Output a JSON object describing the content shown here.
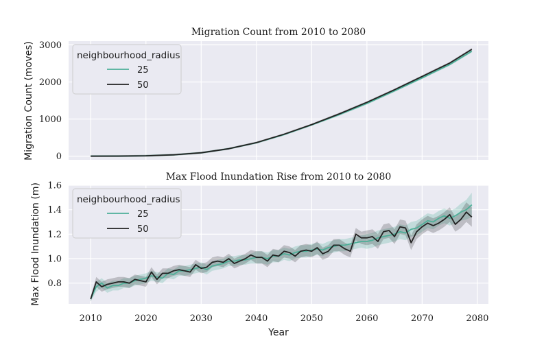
{
  "chart_data": [
    {
      "type": "line",
      "title": "Migration Count from 2010 to 2080",
      "xlabel": "",
      "ylabel": "Migration Count (moves)",
      "xlim": [
        2006,
        2082
      ],
      "ylim": [
        -100,
        3100
      ],
      "xticks": [
        "2010",
        "2020",
        "2030",
        "2040",
        "2050",
        "2060",
        "2070",
        "2080"
      ],
      "yticks": [
        "0",
        "1000",
        "2000",
        "3000"
      ],
      "grid": true,
      "legend": {
        "title": "neighbourhood_radius",
        "placement": "upper-left"
      },
      "x": [
        2010,
        2015,
        2020,
        2025,
        2030,
        2035,
        2040,
        2045,
        2050,
        2055,
        2060,
        2065,
        2070,
        2075,
        2079
      ],
      "series": [
        {
          "name": "25",
          "color": "#4daf98",
          "values": [
            0,
            1,
            10,
            35,
            90,
            200,
            360,
            580,
            840,
            1120,
            1420,
            1760,
            2110,
            2470,
            2830
          ],
          "band": [
            25,
            25,
            25,
            25,
            25,
            25,
            25,
            25,
            25,
            30,
            30,
            30,
            30,
            30,
            35
          ]
        },
        {
          "name": "50",
          "color": "#222222",
          "values": [
            0,
            1,
            10,
            35,
            90,
            200,
            365,
            590,
            850,
            1140,
            1450,
            1790,
            2150,
            2510,
            2880
          ],
          "band": [
            25,
            25,
            25,
            25,
            25,
            25,
            25,
            25,
            25,
            30,
            30,
            30,
            30,
            30,
            35
          ]
        }
      ]
    },
    {
      "type": "line",
      "title": "Max Flood Inundation Rise from 2010 to 2080",
      "xlabel": "Year",
      "ylabel": "Max Flood Inundation (m)",
      "xlim": [
        2006,
        2082
      ],
      "ylim": [
        0.63,
        1.6
      ],
      "xticks": [
        "2010",
        "2020",
        "2030",
        "2040",
        "2050",
        "2060",
        "2070",
        "2080"
      ],
      "yticks": [
        "0.8",
        "1.0",
        "1.2",
        "1.4",
        "1.6"
      ],
      "grid": true,
      "legend": {
        "title": "neighbourhood_radius",
        "placement": "upper-left"
      },
      "x": [
        2010,
        2011,
        2012,
        2013,
        2014,
        2015,
        2016,
        2017,
        2018,
        2019,
        2020,
        2021,
        2022,
        2023,
        2024,
        2025,
        2026,
        2027,
        2028,
        2029,
        2030,
        2031,
        2032,
        2033,
        2034,
        2035,
        2036,
        2037,
        2038,
        2039,
        2040,
        2041,
        2042,
        2043,
        2044,
        2045,
        2046,
        2047,
        2048,
        2049,
        2050,
        2051,
        2052,
        2053,
        2054,
        2055,
        2056,
        2057,
        2058,
        2059,
        2060,
        2061,
        2062,
        2063,
        2064,
        2065,
        2066,
        2067,
        2068,
        2069,
        2070,
        2071,
        2072,
        2073,
        2074,
        2075,
        2076,
        2077,
        2078,
        2079
      ],
      "series": [
        {
          "name": "25",
          "color": "#4daf98",
          "values": [
            0.67,
            0.77,
            0.8,
            0.76,
            0.78,
            0.78,
            0.8,
            0.8,
            0.82,
            0.83,
            0.84,
            0.86,
            0.85,
            0.84,
            0.88,
            0.87,
            0.9,
            0.9,
            0.91,
            0.92,
            0.93,
            0.91,
            0.94,
            0.95,
            0.96,
            0.98,
            0.98,
            0.99,
            0.99,
            1.0,
            1.01,
            1.01,
            1.0,
            1.02,
            1.02,
            1.04,
            1.03,
            1.05,
            1.06,
            1.06,
            1.07,
            1.08,
            1.07,
            1.09,
            1.1,
            1.11,
            1.11,
            1.12,
            1.13,
            1.14,
            1.14,
            1.15,
            1.17,
            1.18,
            1.19,
            1.2,
            1.22,
            1.21,
            1.24,
            1.25,
            1.28,
            1.31,
            1.3,
            1.33,
            1.35,
            1.33,
            1.35,
            1.38,
            1.4,
            1.44
          ],
          "band": [
            0.02,
            0.04,
            0.04,
            0.04,
            0.04,
            0.04,
            0.04,
            0.04,
            0.04,
            0.04,
            0.04,
            0.04,
            0.04,
            0.04,
            0.04,
            0.04,
            0.04,
            0.04,
            0.04,
            0.04,
            0.04,
            0.04,
            0.04,
            0.04,
            0.04,
            0.04,
            0.04,
            0.04,
            0.04,
            0.04,
            0.05,
            0.05,
            0.05,
            0.05,
            0.05,
            0.05,
            0.05,
            0.05,
            0.05,
            0.05,
            0.05,
            0.05,
            0.05,
            0.05,
            0.05,
            0.05,
            0.05,
            0.05,
            0.05,
            0.05,
            0.06,
            0.06,
            0.06,
            0.06,
            0.06,
            0.06,
            0.06,
            0.06,
            0.06,
            0.06,
            0.06,
            0.06,
            0.06,
            0.06,
            0.06,
            0.06,
            0.06,
            0.07,
            0.08,
            0.1
          ]
        },
        {
          "name": "50",
          "color": "#222222",
          "values": [
            0.67,
            0.81,
            0.77,
            0.79,
            0.8,
            0.81,
            0.81,
            0.8,
            0.83,
            0.82,
            0.81,
            0.89,
            0.83,
            0.88,
            0.88,
            0.9,
            0.91,
            0.9,
            0.89,
            0.95,
            0.92,
            0.93,
            0.97,
            0.98,
            0.97,
            1.0,
            0.96,
            0.98,
            1.0,
            1.03,
            1.01,
            1.01,
            0.98,
            1.03,
            1.02,
            1.06,
            1.05,
            1.02,
            1.06,
            1.07,
            1.06,
            1.09,
            1.04,
            1.06,
            1.11,
            1.11,
            1.08,
            1.06,
            1.2,
            1.17,
            1.17,
            1.18,
            1.14,
            1.22,
            1.23,
            1.18,
            1.26,
            1.25,
            1.13,
            1.22,
            1.26,
            1.29,
            1.27,
            1.29,
            1.32,
            1.36,
            1.28,
            1.32,
            1.38,
            1.34
          ],
          "band": [
            0.02,
            0.04,
            0.04,
            0.04,
            0.04,
            0.04,
            0.04,
            0.04,
            0.04,
            0.04,
            0.04,
            0.04,
            0.04,
            0.04,
            0.04,
            0.04,
            0.04,
            0.04,
            0.04,
            0.04,
            0.04,
            0.04,
            0.04,
            0.04,
            0.04,
            0.04,
            0.04,
            0.04,
            0.04,
            0.04,
            0.05,
            0.05,
            0.05,
            0.05,
            0.05,
            0.05,
            0.05,
            0.05,
            0.05,
            0.05,
            0.05,
            0.05,
            0.05,
            0.05,
            0.05,
            0.05,
            0.05,
            0.05,
            0.05,
            0.05,
            0.06,
            0.06,
            0.06,
            0.06,
            0.06,
            0.06,
            0.06,
            0.06,
            0.06,
            0.06,
            0.06,
            0.06,
            0.06,
            0.06,
            0.06,
            0.06,
            0.06,
            0.07,
            0.08,
            0.08
          ]
        }
      ]
    }
  ]
}
